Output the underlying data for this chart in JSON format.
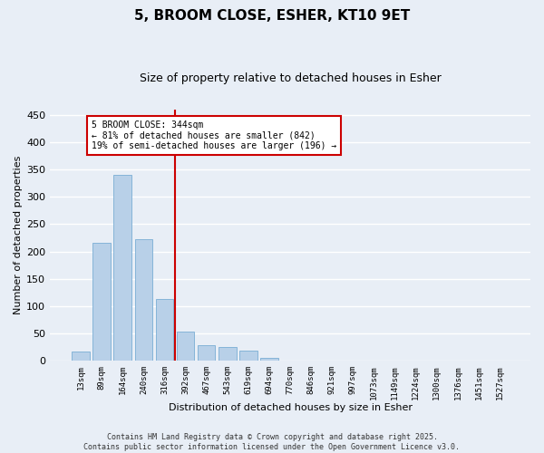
{
  "title": "5, BROOM CLOSE, ESHER, KT10 9ET",
  "subtitle": "Size of property relative to detached houses in Esher",
  "xlabel": "Distribution of detached houses by size in Esher",
  "ylabel": "Number of detached properties",
  "bar_labels": [
    "13sqm",
    "89sqm",
    "164sqm",
    "240sqm",
    "316sqm",
    "392sqm",
    "467sqm",
    "543sqm",
    "619sqm",
    "694sqm",
    "770sqm",
    "846sqm",
    "921sqm",
    "997sqm",
    "1073sqm",
    "1149sqm",
    "1224sqm",
    "1300sqm",
    "1376sqm",
    "1451sqm",
    "1527sqm"
  ],
  "bar_values": [
    17,
    216,
    340,
    223,
    113,
    54,
    29,
    25,
    19,
    6,
    1,
    1,
    1,
    0,
    0,
    0,
    1,
    0,
    0,
    0,
    1
  ],
  "bar_color": "#b8d0e8",
  "bar_edge_color": "#7aadd4",
  "ylim": [
    0,
    460
  ],
  "yticks": [
    0,
    50,
    100,
    150,
    200,
    250,
    300,
    350,
    400,
    450
  ],
  "vline_x": 4.5,
  "vline_color": "#cc0000",
  "annotation_text": "5 BROOM CLOSE: 344sqm\n← 81% of detached houses are smaller (842)\n19% of semi-detached houses are larger (196) →",
  "annotation_box_color": "#ffffff",
  "annotation_box_edge": "#cc0000",
  "footer_line1": "Contains HM Land Registry data © Crown copyright and database right 2025.",
  "footer_line2": "Contains public sector information licensed under the Open Government Licence v3.0.",
  "bg_color": "#e8eef6",
  "plot_bg_color": "#e8eef6",
  "grid_color": "#ffffff",
  "title_fontsize": 11,
  "subtitle_fontsize": 9,
  "ylabel_fontsize": 8,
  "xlabel_fontsize": 8,
  "ytick_fontsize": 8,
  "xtick_fontsize": 6.5,
  "annot_fontsize": 7,
  "footer_fontsize": 6
}
